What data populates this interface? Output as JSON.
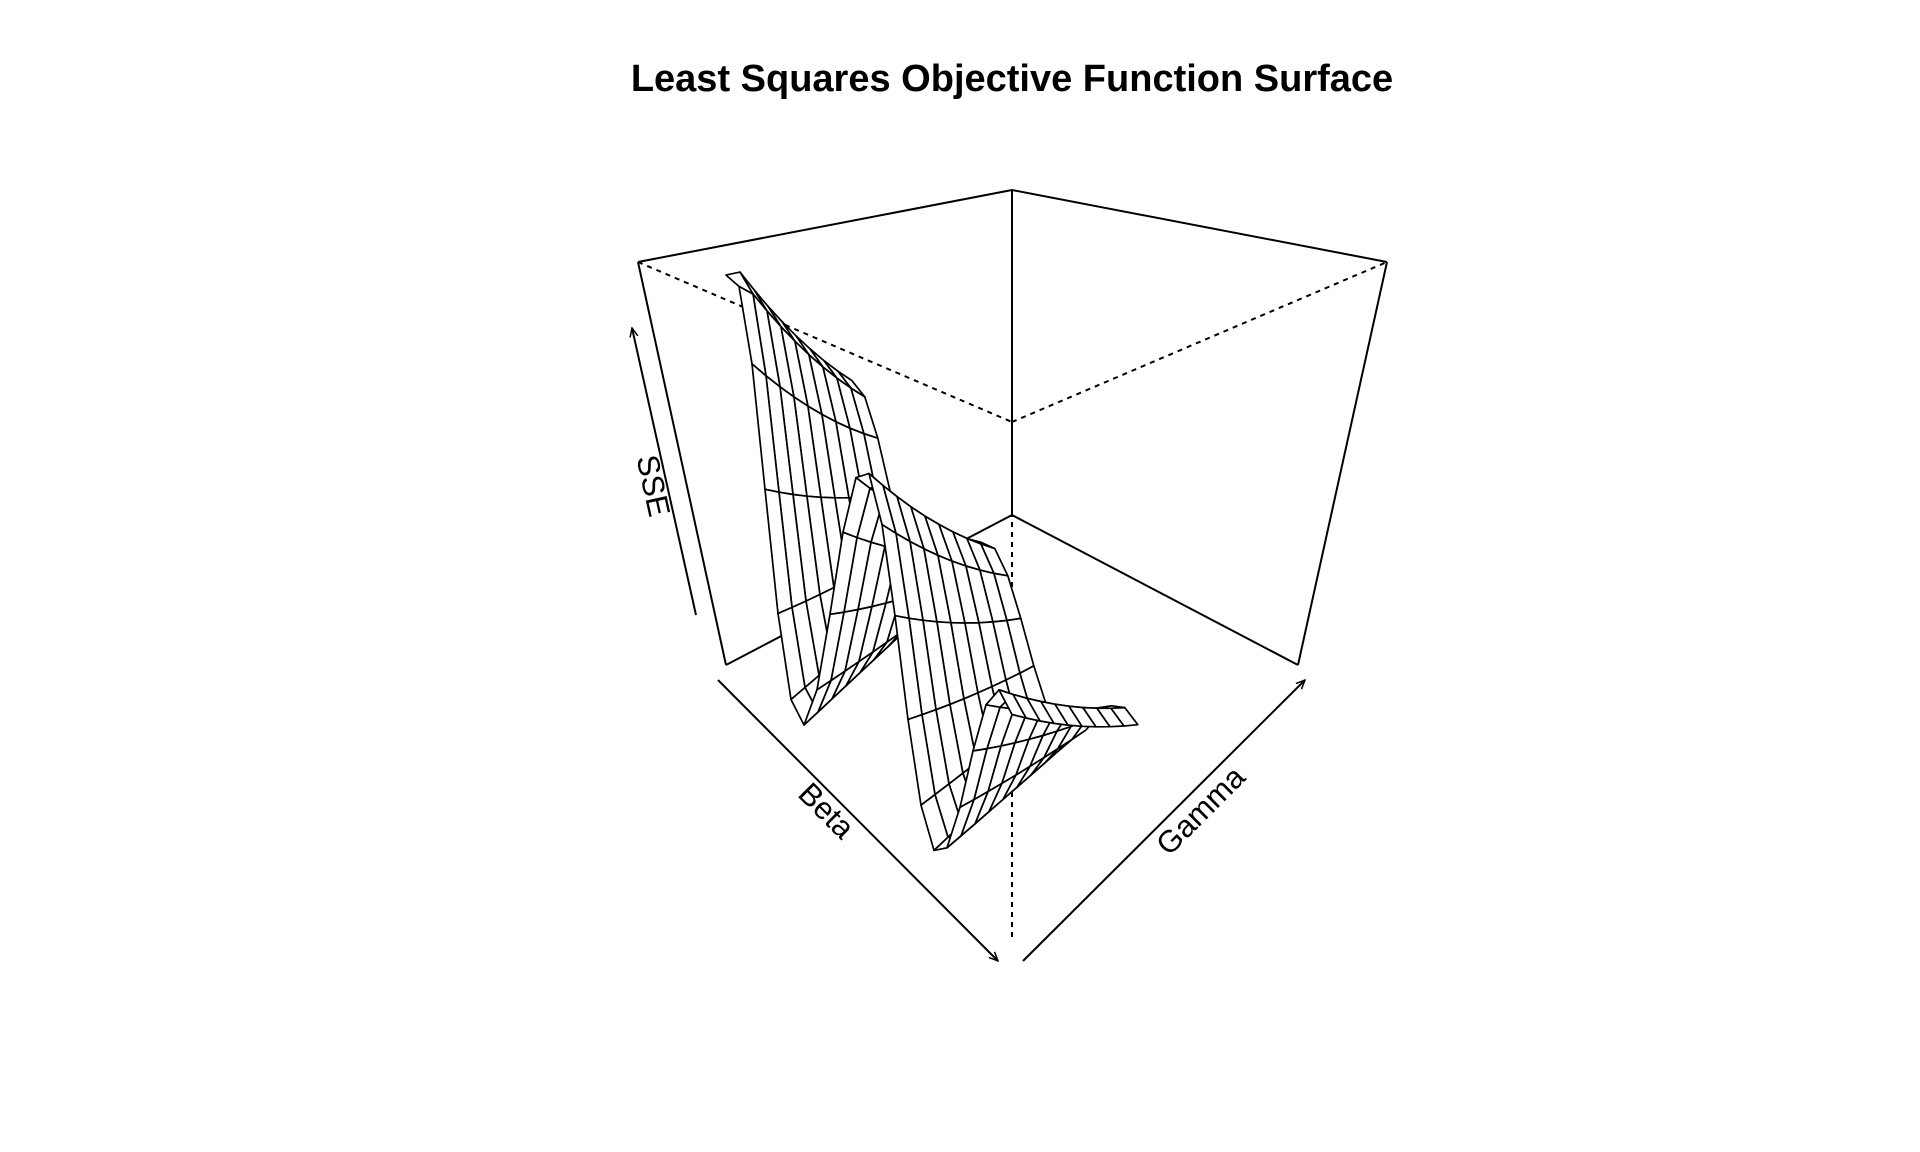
{
  "chart_data": {
    "type": "surface",
    "title": "Least Squares Objective Function Surface",
    "xlabel": "Beta",
    "ylabel": "Gamma",
    "zlabel": "SSE",
    "box": true,
    "ticks": false
  },
  "colors": {
    "background": "#ffffff",
    "ink": "#000000"
  }
}
